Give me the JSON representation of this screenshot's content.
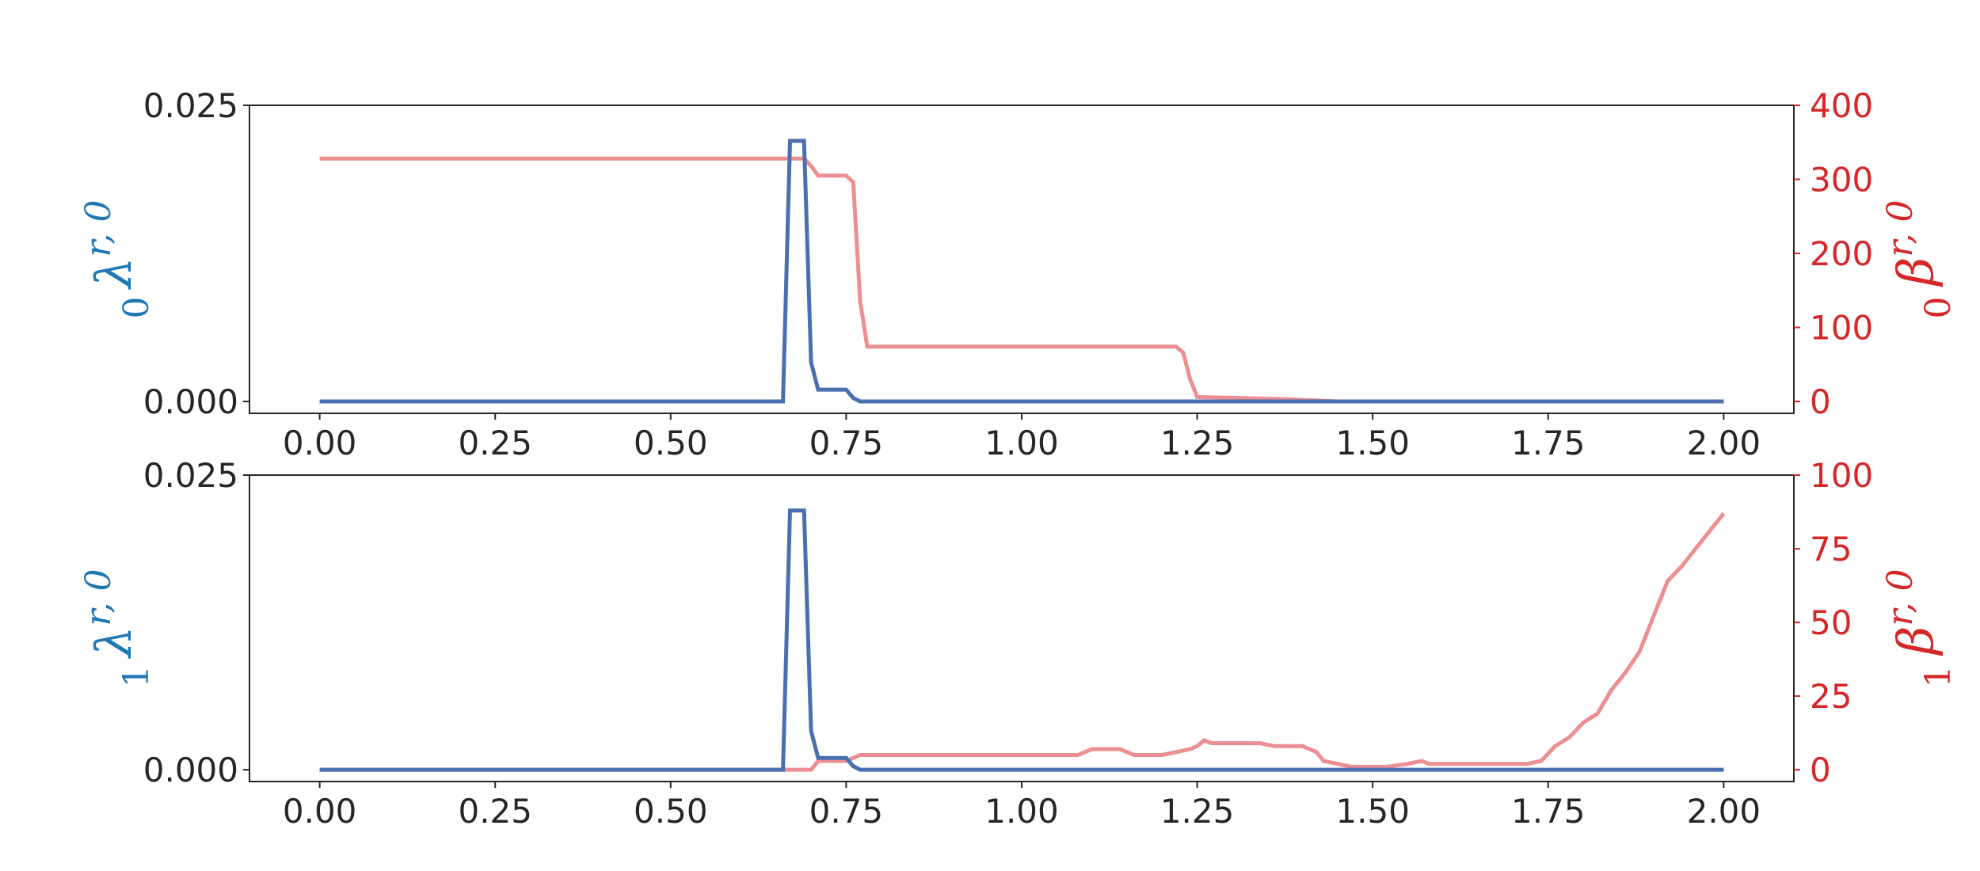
{
  "colors": {
    "left_axis": "#1f77b4",
    "left_line": "#4a6fb0",
    "right_axis": "#d62728",
    "right_line": "#ec8f92",
    "frame": "#262626"
  },
  "chart_data": [
    {
      "type": "line",
      "grid": false,
      "legend": "none",
      "xlim": [
        -0.1,
        2.1
      ],
      "xticks": [
        "0.00",
        "0.25",
        "0.50",
        "0.75",
        "1.00",
        "1.25",
        "1.50",
        "1.75",
        "2.00"
      ],
      "left_axis": {
        "label_symbol": "λ",
        "label_sup": "r, 0",
        "label_sub": "0",
        "ylim": [
          -0.001,
          0.025
        ],
        "ticks": [
          "0.000",
          "0.025"
        ]
      },
      "right_axis": {
        "label_symbol": "β",
        "label_sup": "r, 0",
        "label_sub": "0",
        "ylim": [
          -16,
          400
        ],
        "ticks": [
          "0",
          "100",
          "200",
          "300",
          "400"
        ]
      },
      "series": [
        {
          "axis": "left",
          "points": [
            [
              0.0,
              0.0
            ],
            [
              0.66,
              0.0
            ],
            [
              0.67,
              0.022
            ],
            [
              0.69,
              0.022
            ],
            [
              0.7,
              0.0033
            ],
            [
              0.71,
              0.001
            ],
            [
              0.75,
              0.001
            ],
            [
              0.76,
              0.0003
            ],
            [
              0.77,
              0.0
            ],
            [
              2.0,
              0.0
            ]
          ]
        },
        {
          "axis": "right",
          "points": [
            [
              0.0,
              328
            ],
            [
              0.69,
              328
            ],
            [
              0.7,
              318
            ],
            [
              0.71,
              305
            ],
            [
              0.75,
              305
            ],
            [
              0.76,
              296
            ],
            [
              0.77,
              135
            ],
            [
              0.78,
              74
            ],
            [
              1.22,
              74
            ],
            [
              1.23,
              66
            ],
            [
              1.24,
              30
            ],
            [
              1.25,
              6
            ],
            [
              1.3,
              5
            ],
            [
              1.38,
              3
            ],
            [
              1.45,
              0
            ],
            [
              2.0,
              0
            ]
          ]
        }
      ]
    },
    {
      "type": "line",
      "grid": false,
      "legend": "none",
      "xlim": [
        -0.1,
        2.1
      ],
      "xticks": [
        "0.00",
        "0.25",
        "0.50",
        "0.75",
        "1.00",
        "1.25",
        "1.50",
        "1.75",
        "2.00"
      ],
      "left_axis": {
        "label_symbol": "λ",
        "label_sup": "r, 0",
        "label_sub": "1",
        "ylim": [
          -0.001,
          0.025
        ],
        "ticks": [
          "0.000",
          "0.025"
        ]
      },
      "right_axis": {
        "label_symbol": "β",
        "label_sup": "r, 0",
        "label_sub": "1",
        "ylim": [
          -4,
          100
        ],
        "ticks": [
          "0",
          "25",
          "50",
          "75",
          "100"
        ]
      },
      "series": [
        {
          "axis": "left",
          "points": [
            [
              0.0,
              0.0
            ],
            [
              0.66,
              0.0
            ],
            [
              0.67,
              0.022
            ],
            [
              0.69,
              0.022
            ],
            [
              0.7,
              0.0033
            ],
            [
              0.71,
              0.001
            ],
            [
              0.75,
              0.001
            ],
            [
              0.76,
              0.0003
            ],
            [
              0.77,
              0.0
            ],
            [
              2.0,
              0.0
            ]
          ]
        },
        {
          "axis": "right",
          "points": [
            [
              0.0,
              0
            ],
            [
              0.7,
              0
            ],
            [
              0.71,
              3
            ],
            [
              0.75,
              3
            ],
            [
              0.77,
              5
            ],
            [
              1.08,
              5
            ],
            [
              1.1,
              7
            ],
            [
              1.14,
              7
            ],
            [
              1.16,
              5
            ],
            [
              1.2,
              5
            ],
            [
              1.22,
              6
            ],
            [
              1.24,
              7
            ],
            [
              1.25,
              8
            ],
            [
              1.26,
              10
            ],
            [
              1.27,
              9
            ],
            [
              1.34,
              9
            ],
            [
              1.36,
              8
            ],
            [
              1.4,
              8
            ],
            [
              1.42,
              6
            ],
            [
              1.43,
              3
            ],
            [
              1.45,
              2
            ],
            [
              1.47,
              1
            ],
            [
              1.52,
              1
            ],
            [
              1.55,
              2
            ],
            [
              1.57,
              3
            ],
            [
              1.58,
              2
            ],
            [
              1.72,
              2
            ],
            [
              1.74,
              3
            ],
            [
              1.76,
              8
            ],
            [
              1.78,
              11
            ],
            [
              1.8,
              16
            ],
            [
              1.82,
              19
            ],
            [
              1.84,
              27
            ],
            [
              1.86,
              33
            ],
            [
              1.88,
              40
            ],
            [
              1.9,
              52
            ],
            [
              1.92,
              64
            ],
            [
              1.94,
              69
            ],
            [
              1.96,
              75
            ],
            [
              1.98,
              81
            ],
            [
              2.0,
              87
            ]
          ]
        }
      ]
    }
  ]
}
